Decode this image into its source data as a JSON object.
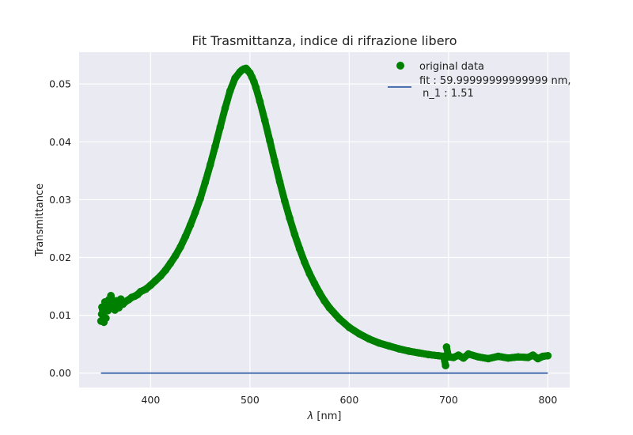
{
  "chart_data": {
    "type": "scatter",
    "title": "Fit Trasmittanza, indice di rifrazione libero",
    "xlabel_symbol": "λ",
    "xlabel_unit": " [nm]",
    "ylabel": "Transmittance",
    "xlim": [
      328,
      822
    ],
    "ylim": [
      -0.0025,
      0.0555
    ],
    "xticks": [
      400,
      500,
      600,
      700,
      800
    ],
    "yticks": [
      0.0,
      0.01,
      0.02,
      0.03,
      0.04,
      0.05
    ],
    "xtick_labels": [
      "400",
      "500",
      "600",
      "700",
      "800"
    ],
    "ytick_labels": [
      "0.00",
      "0.01",
      "0.02",
      "0.03",
      "0.04",
      "0.05"
    ],
    "grid": true,
    "legend_position": "top-right",
    "colors": {
      "background": "#eaeaf2",
      "grid": "#ffffff",
      "points": "#008000",
      "fit_line": "#4c72b0"
    },
    "series": [
      {
        "name": "original data",
        "kind": "scatter",
        "x": [
          350,
          351,
          352,
          353,
          354,
          355,
          356,
          357,
          358,
          359,
          360,
          362,
          364,
          366,
          368,
          370,
          372,
          375,
          378,
          381,
          384,
          387,
          390,
          395,
          400,
          405,
          410,
          415,
          420,
          425,
          430,
          435,
          440,
          445,
          450,
          455,
          460,
          465,
          470,
          475,
          480,
          485,
          490,
          492,
          494,
          496,
          497,
          498,
          500,
          502,
          504,
          506,
          510,
          515,
          520,
          525,
          530,
          535,
          540,
          545,
          550,
          555,
          560,
          565,
          570,
          575,
          580,
          590,
          600,
          610,
          620,
          630,
          640,
          650,
          660,
          670,
          680,
          690,
          695,
          697,
          698,
          700,
          705,
          710,
          715,
          720,
          730,
          740,
          750,
          760,
          770,
          780,
          785,
          790,
          795,
          800
        ],
        "y": [
          0.009,
          0.0114,
          0.0105,
          0.0088,
          0.0123,
          0.0095,
          0.012,
          0.0108,
          0.0127,
          0.0112,
          0.0134,
          0.0118,
          0.0109,
          0.0125,
          0.0113,
          0.0128,
          0.0119,
          0.0124,
          0.0127,
          0.0131,
          0.0133,
          0.0136,
          0.0141,
          0.0145,
          0.0152,
          0.016,
          0.0168,
          0.0178,
          0.019,
          0.0203,
          0.0218,
          0.0236,
          0.0256,
          0.0278,
          0.0302,
          0.033,
          0.036,
          0.0392,
          0.0425,
          0.0458,
          0.0488,
          0.051,
          0.0521,
          0.0524,
          0.0526,
          0.0527,
          0.0525,
          0.0523,
          0.0519,
          0.0512,
          0.0504,
          0.0494,
          0.047,
          0.0437,
          0.0402,
          0.0366,
          0.0331,
          0.0298,
          0.0268,
          0.024,
          0.0215,
          0.0192,
          0.0172,
          0.0155,
          0.0139,
          0.0125,
          0.0113,
          0.0094,
          0.0079,
          0.0068,
          0.0059,
          0.0052,
          0.0047,
          0.0042,
          0.0038,
          0.0035,
          0.0032,
          0.003,
          0.0029,
          0.0013,
          0.0045,
          0.0028,
          0.0027,
          0.0031,
          0.0026,
          0.0033,
          0.0028,
          0.0025,
          0.0029,
          0.0026,
          0.0028,
          0.0027,
          0.0031,
          0.0025,
          0.0029,
          0.003
        ]
      },
      {
        "name": "fit : 59.99999999999999 nm,\n n_1 : 1.51",
        "name_lines": [
          "fit : 59.99999999999999 nm,",
          " n_1 : 1.51"
        ],
        "kind": "line",
        "x": [
          350,
          800
        ],
        "y": [
          0.0,
          0.0
        ]
      }
    ]
  }
}
